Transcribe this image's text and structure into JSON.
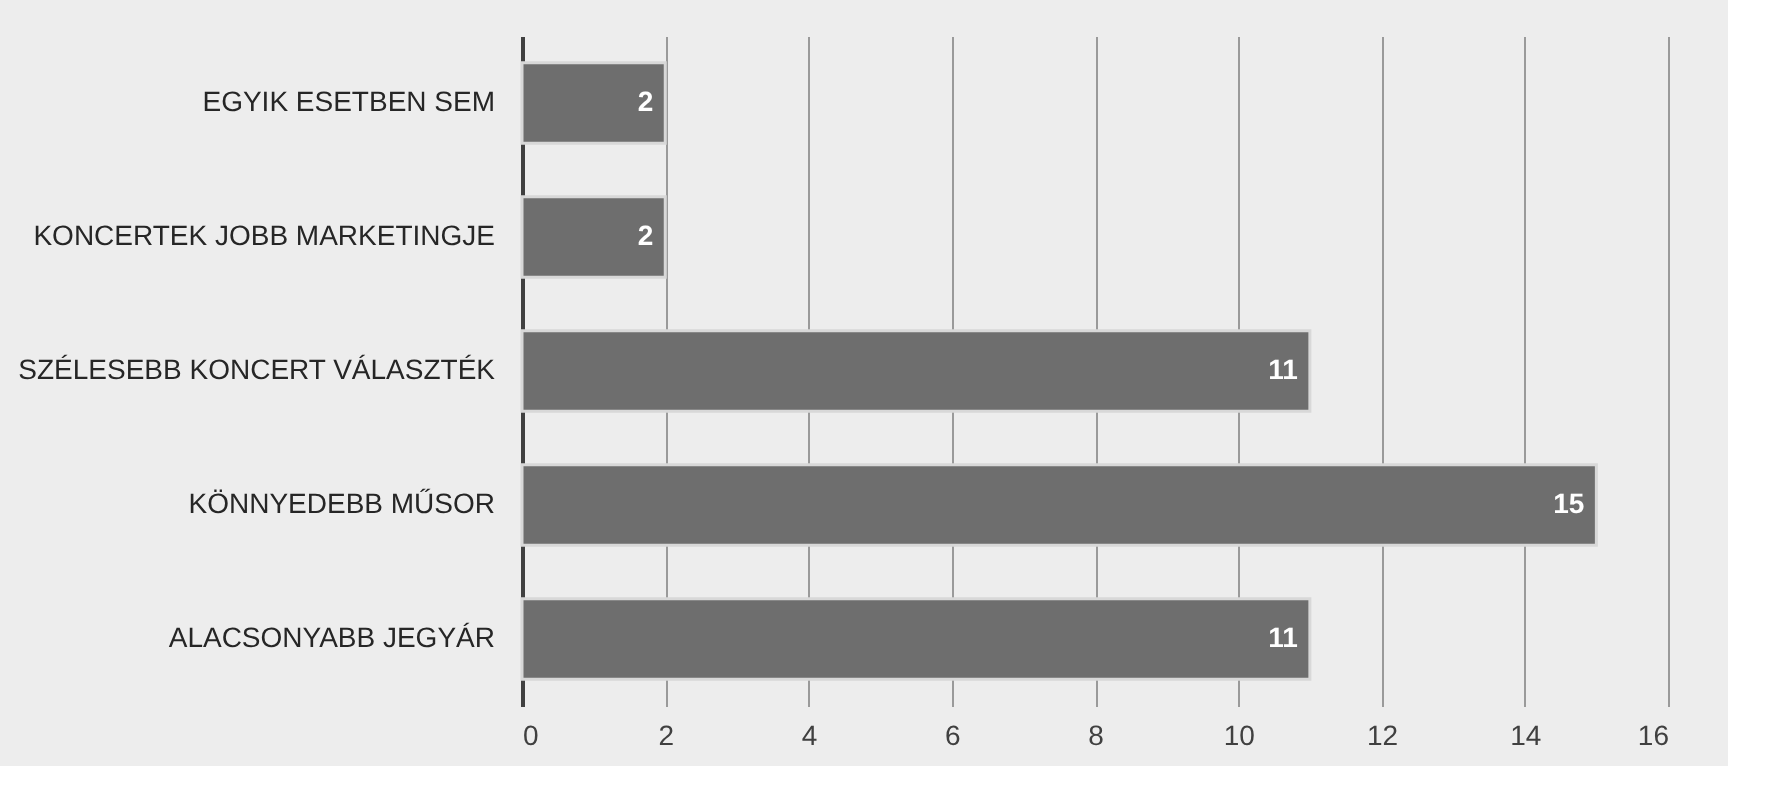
{
  "chart_data": {
    "type": "bar",
    "orientation": "horizontal",
    "categories": [
      "EGYIK ESETBEN SEM",
      "KONCERTEK JOBB MARKETINGJE",
      "SZÉLESEBB KONCERT VÁLASZTÉK",
      "KÖNNYEDEBB MŰSOR",
      "ALACSONYABB JEGYÁR"
    ],
    "values": [
      2,
      2,
      11,
      15,
      11
    ],
    "color": "#6e6e6e",
    "xlim": [
      0,
      16
    ],
    "xticks": [
      0,
      2,
      4,
      6,
      8,
      10,
      12,
      14,
      16
    ],
    "grid": "x",
    "data_labels": true
  }
}
